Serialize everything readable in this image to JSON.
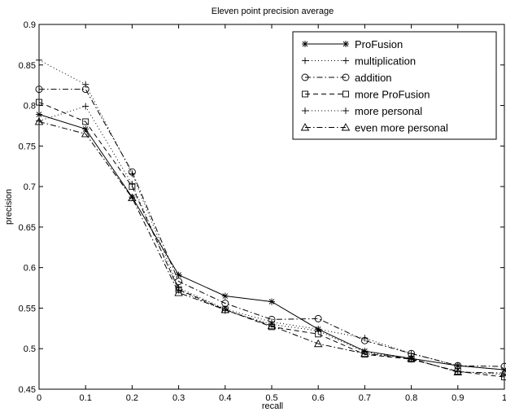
{
  "chart_data": {
    "type": "line",
    "title": "Eleven point precision average",
    "xlabel": "recall",
    "ylabel": "precision",
    "xlim": [
      0,
      1
    ],
    "ylim": [
      0.45,
      0.9
    ],
    "xticks": [
      "0",
      "0.1",
      "0.2",
      "0.3",
      "0.4",
      "0.5",
      "0.6",
      "0.7",
      "0.8",
      "0.9",
      "1"
    ],
    "yticks": [
      "0.45",
      "0.5",
      "0.55",
      "0.6",
      "0.65",
      "0.7",
      "0.75",
      "0.8",
      "0.85",
      "0.9"
    ],
    "grid": false,
    "legend_position": "top-right",
    "x": [
      0,
      0.1,
      0.2,
      0.3,
      0.4,
      0.5,
      0.6,
      0.7,
      0.8,
      0.9,
      1
    ],
    "series": [
      {
        "name": "ProFusion",
        "line": "solid",
        "marker": "asterisk",
        "values": [
          0.789,
          0.771,
          0.687,
          0.591,
          0.565,
          0.558,
          0.524,
          0.497,
          0.488,
          0.479,
          0.474
        ]
      },
      {
        "name": "multiplication",
        "line": "dotted",
        "marker": "plus",
        "values": [
          0.856,
          0.826,
          0.716,
          0.575,
          0.549,
          0.533,
          0.524,
          0.513,
          0.494,
          0.479,
          0.474
        ]
      },
      {
        "name": "addition",
        "line": "dashdot",
        "marker": "circle",
        "values": [
          0.82,
          0.82,
          0.718,
          0.583,
          0.556,
          0.536,
          0.537,
          0.51,
          0.494,
          0.479,
          0.478
        ]
      },
      {
        "name": "more ProFusion",
        "line": "dashed",
        "marker": "square",
        "values": [
          0.804,
          0.78,
          0.7,
          0.573,
          0.548,
          0.527,
          0.518,
          0.493,
          0.487,
          0.472,
          0.465
        ]
      },
      {
        "name": "more personal",
        "line": "dotted",
        "marker": "plus",
        "values": [
          0.781,
          0.799,
          0.703,
          0.572,
          0.547,
          0.53,
          0.522,
          0.496,
          0.487,
          0.472,
          0.468
        ]
      },
      {
        "name": "even more personal",
        "line": "dashdot",
        "marker": "triangle",
        "values": [
          0.78,
          0.765,
          0.686,
          0.569,
          0.548,
          0.528,
          0.506,
          0.494,
          0.488,
          0.471,
          0.47
        ]
      }
    ]
  }
}
